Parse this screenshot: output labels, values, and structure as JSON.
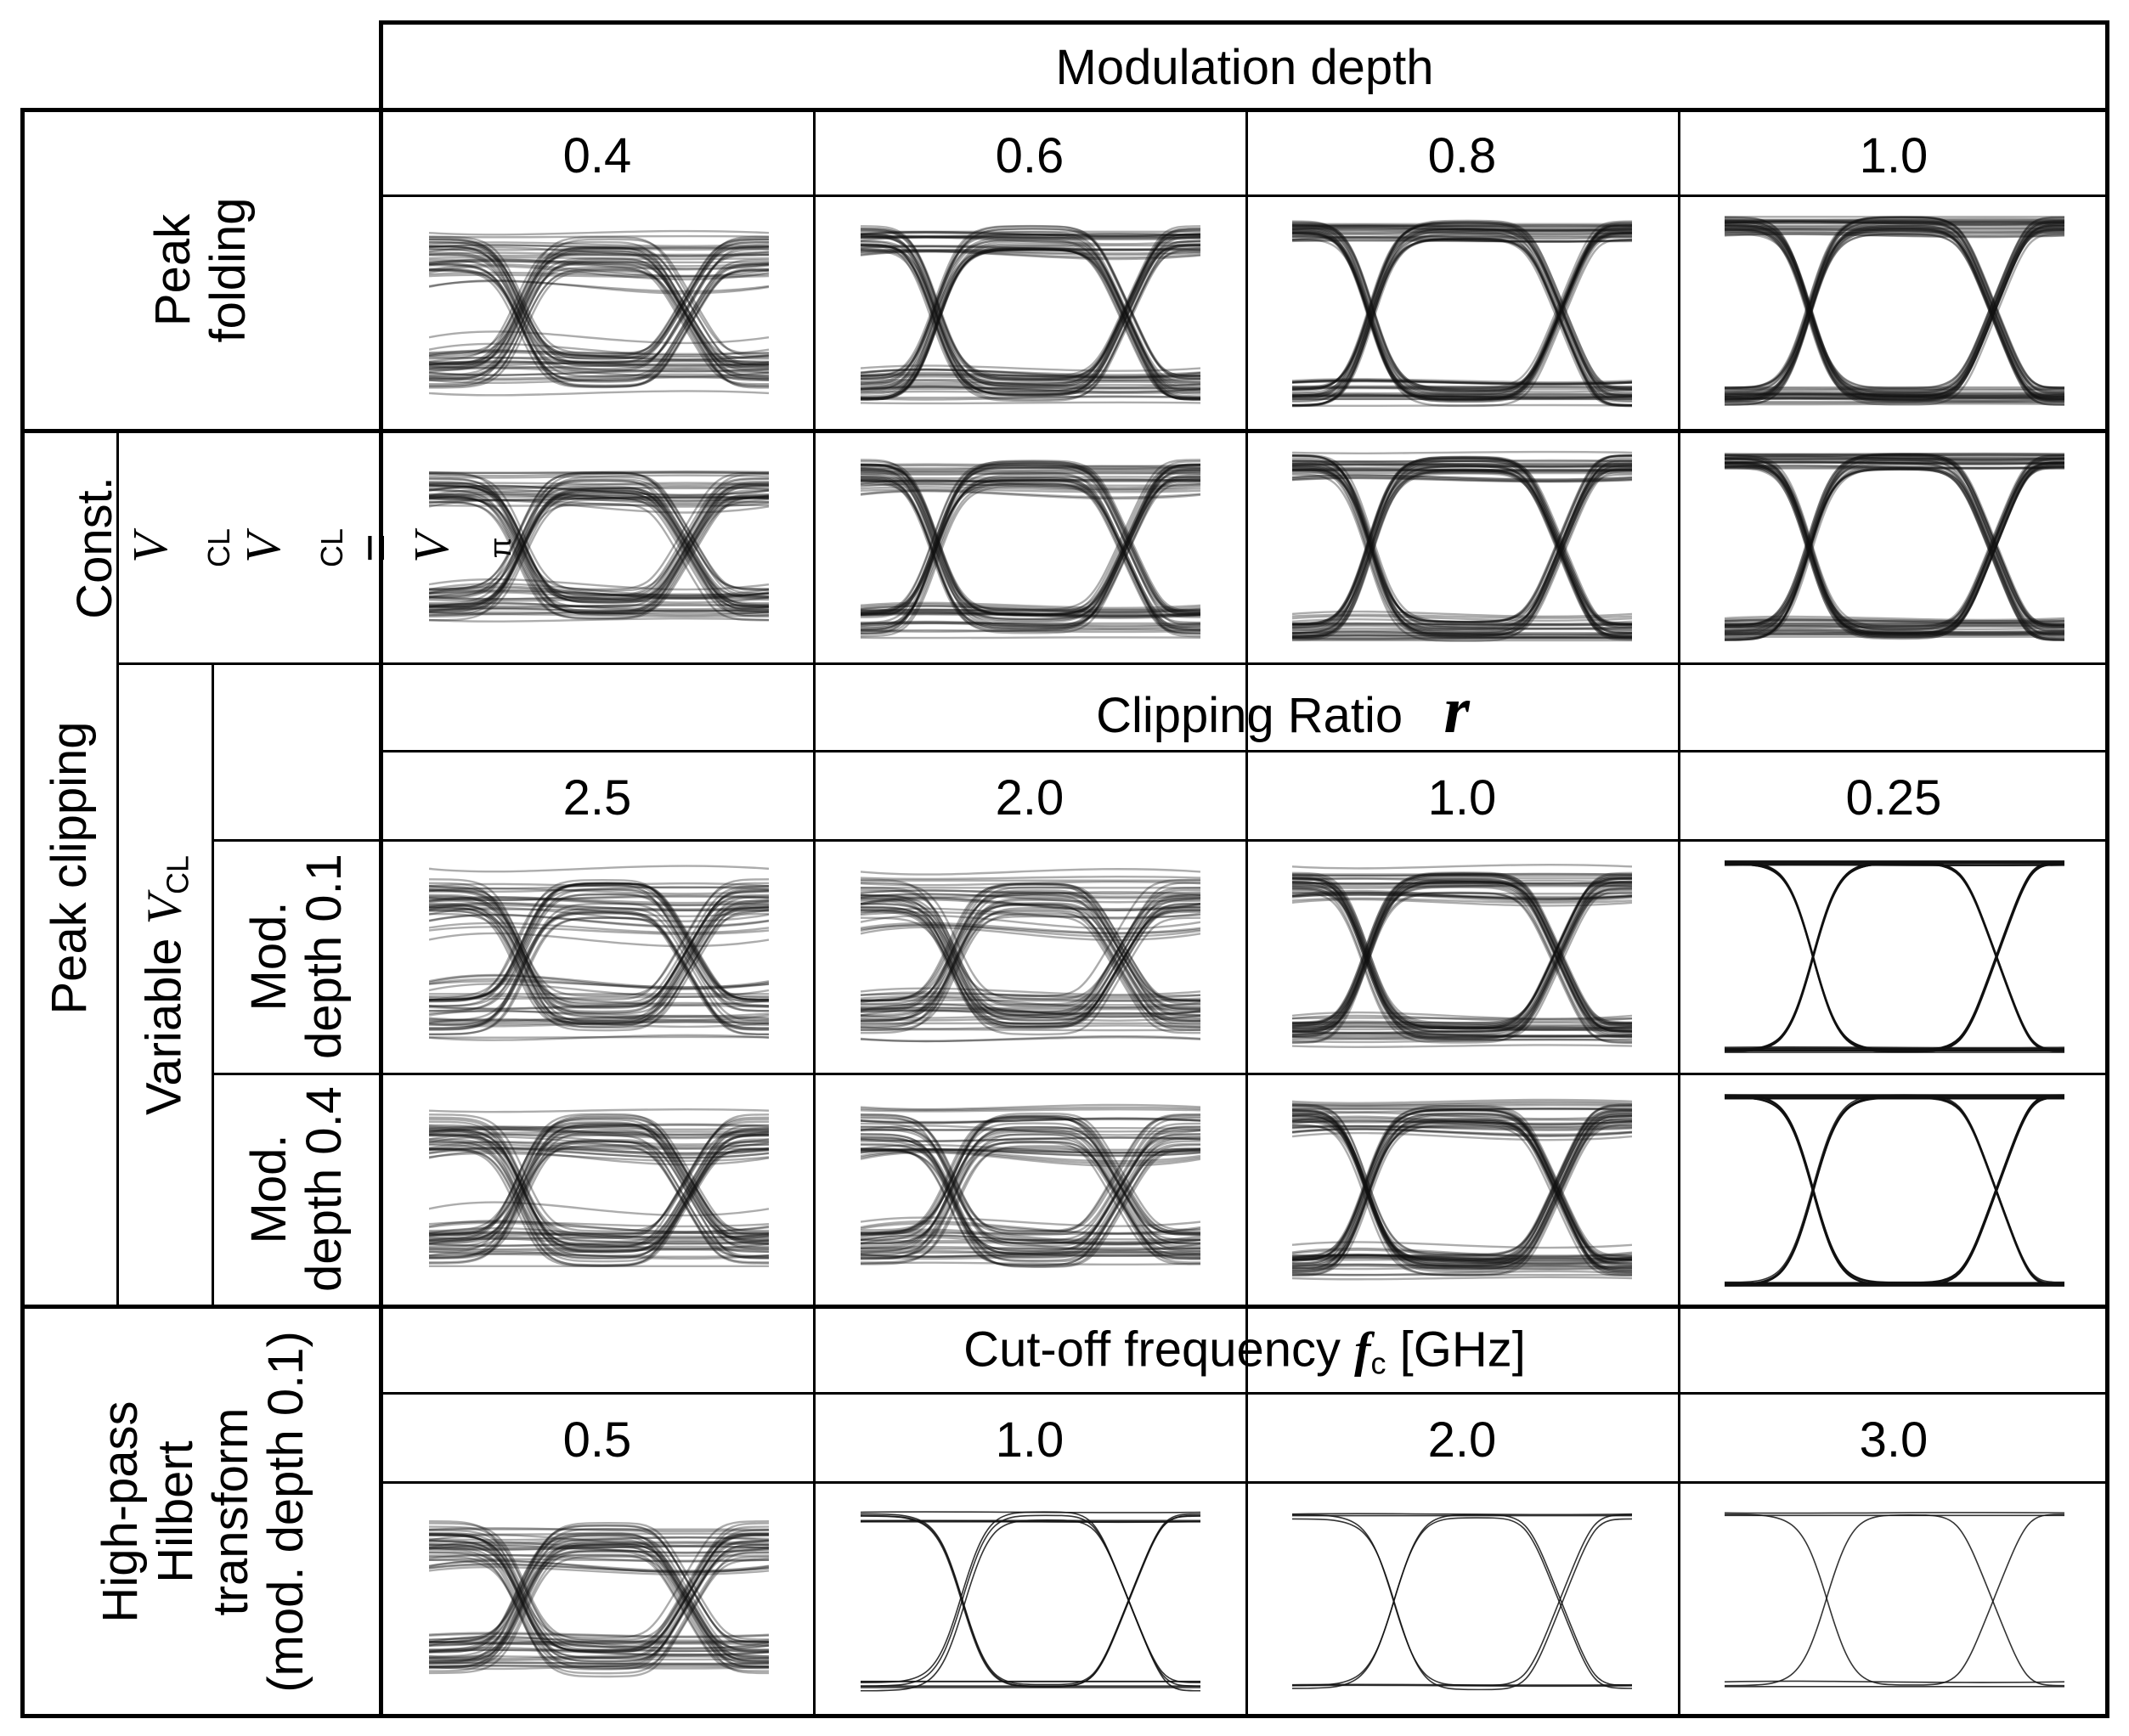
{
  "header": {
    "modulation_depth": "Modulation depth"
  },
  "depths": [
    "0.4",
    "0.6",
    "0.8",
    "1.0"
  ],
  "clipping": {
    "header_text": "Clipping Ratio",
    "header_symbol": "r",
    "ratios": [
      "2.5",
      "2.0",
      "1.0",
      "0.25"
    ]
  },
  "cutoff": {
    "header_prefix": "Cut-off frequency",
    "symbol": "f",
    "symbol_sub": "c",
    "unit": "[GHz]",
    "values": [
      "0.5",
      "1.0",
      "2.0",
      "3.0"
    ]
  },
  "row_labels": {
    "peak_folding_1": "Peak",
    "peak_folding_2": "folding",
    "peak_clipping": "Peak clipping",
    "const_1": "Const.",
    "vcl_symbol": "V",
    "vcl_sub": "CL",
    "equals": "=",
    "vpi_sub": "π",
    "variable": "Variable",
    "mod01_1": "Mod.",
    "mod01_2": "depth 0.1",
    "mod04_1": "Mod.",
    "mod04_2": "depth 0.4",
    "hp_1": "High-pass",
    "hp_2": "Hilbert",
    "hp_3": "transform",
    "hp_4": "(mod. depth 0.1)"
  },
  "colors": {
    "line": "#000000",
    "trace": "#111111",
    "background": "#ffffff"
  }
}
